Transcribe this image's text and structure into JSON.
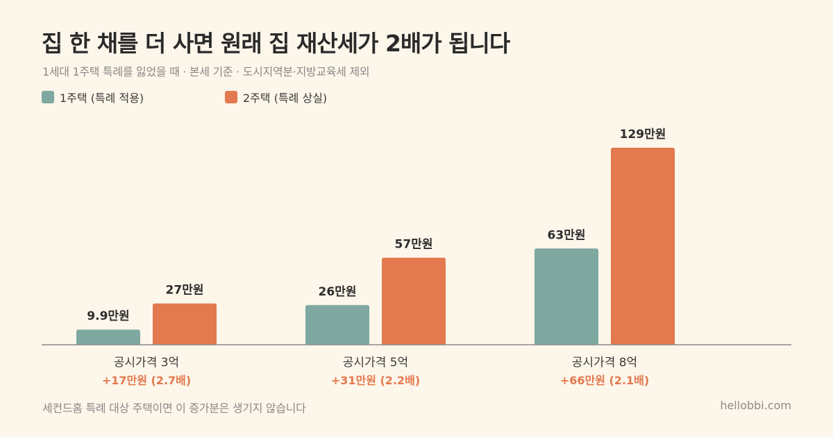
{
  "title": "집 한 채를 더 사면 원래 집 재산세가 2배가 됩니다",
  "subtitle": "1세대 1주택 특례를 잃었을 때 · 본세 기준 · 도시지역분·지방교육세 제외",
  "footnote": "세컨드홈 특례 대상 주택이면 이 증가분은 생기지 않습니다",
  "brand": "hellobbi.com",
  "colors": {
    "series1": "#7fa8a0",
    "series2": "#e3794e",
    "axis": "#8a8a8a",
    "diff": "#e3794e"
  },
  "chart_data": {
    "type": "bar",
    "categories": [
      "공시가격 3억",
      "공시가격 5억",
      "공시가격 8억"
    ],
    "series": [
      {
        "name": "1주택 (특례 적용)",
        "values": [
          9.9,
          26,
          63
        ],
        "labels": [
          "9.9만원",
          "26만원",
          "63만원"
        ]
      },
      {
        "name": "2주택 (특례 상실)",
        "values": [
          27,
          57,
          129
        ],
        "labels": [
          "27만원",
          "57만원",
          "129만원"
        ]
      }
    ],
    "differences": [
      "+17만원 (2.7배)",
      "+31만원 (2.2배)",
      "+66만원 (2.1배)"
    ],
    "ylim": [
      0,
      129
    ],
    "grid": false,
    "legend": "top-left"
  }
}
